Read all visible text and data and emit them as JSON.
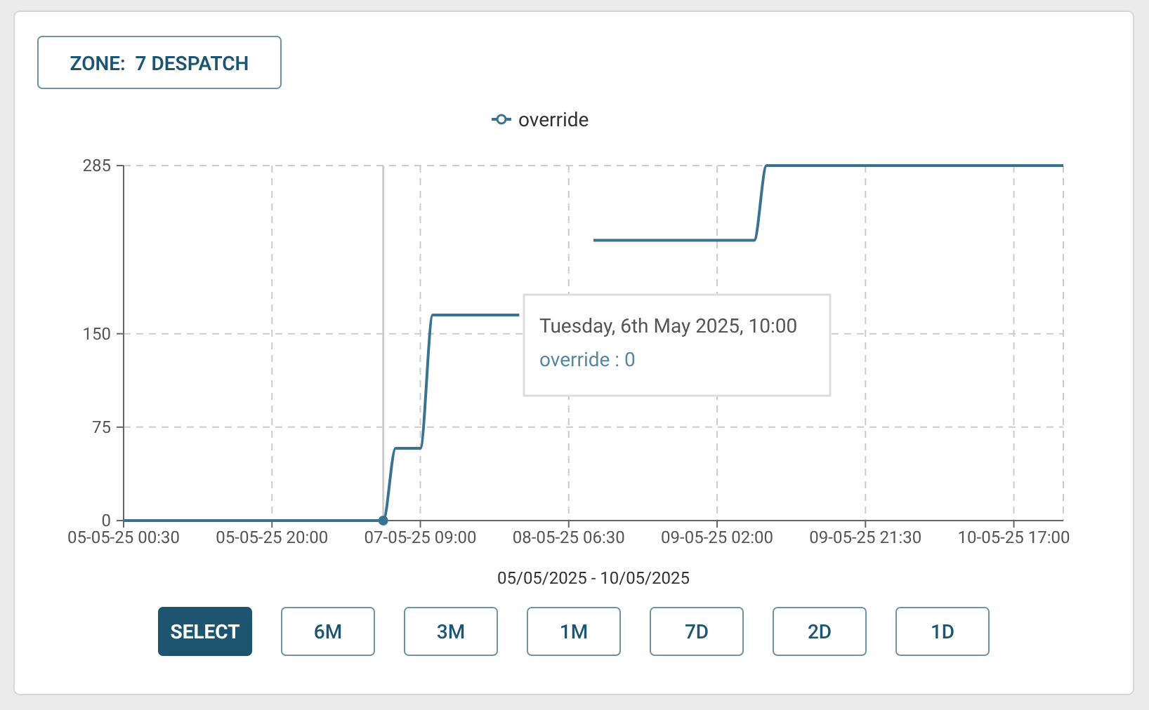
{
  "chart_data": {
    "type": "line",
    "title": "ZONE:  7 DESPATCH",
    "xlabel": "05/05/2025 - 10/05/2025",
    "categories": [
      "05-05-25 00:30",
      null,
      null,
      null,
      null,
      null,
      null,
      null,
      null,
      null,
      null,
      null,
      "05-05-25 20:00",
      null,
      null,
      null,
      null,
      null,
      null,
      null,
      null,
      null,
      null,
      null,
      "07-05-25 09:00",
      null,
      null,
      null,
      null,
      null,
      null,
      null,
      null,
      null,
      null,
      null,
      "08-05-25 06:30",
      null,
      null,
      null,
      null,
      null,
      null,
      null,
      null,
      null,
      null,
      null,
      "09-05-25 02:00",
      null,
      null,
      null,
      null,
      null,
      null,
      null,
      null,
      null,
      null,
      null,
      "09-05-25 21:30",
      null,
      null,
      null,
      null,
      null,
      null,
      null,
      null,
      null,
      null,
      null,
      "10-05-25 17:00",
      null,
      null,
      null,
      null
    ],
    "series": [
      {
        "name": "override",
        "color": "#3a7391",
        "values": [
          0,
          0,
          0,
          0,
          0,
          0,
          0,
          0,
          0,
          0,
          0,
          0,
          0,
          0,
          0,
          0,
          0,
          0,
          0,
          0,
          0,
          0,
          58,
          58,
          58,
          165,
          165,
          165,
          165,
          165,
          165,
          165,
          165,
          null,
          null,
          null,
          null,
          null,
          225,
          225,
          225,
          225,
          225,
          225,
          225,
          225,
          225,
          225,
          225,
          225,
          225,
          225,
          285,
          285,
          285,
          285,
          285,
          285,
          285,
          285,
          285,
          285,
          285,
          285,
          285,
          285,
          285,
          285,
          285,
          285,
          285,
          285,
          285,
          285,
          285,
          285,
          285
        ]
      }
    ],
    "ylim": [
      0,
      285
    ],
    "yticks": [
      0,
      75,
      150,
      285
    ],
    "grid": true,
    "legend": "top",
    "line_style": "solid",
    "annotations": [
      "Tuesday, 6th May 2025, 10:00",
      "override : 0",
      "SELECT",
      "6M",
      "3M",
      "1M",
      "7D",
      "2D",
      "1D"
    ]
  }
}
